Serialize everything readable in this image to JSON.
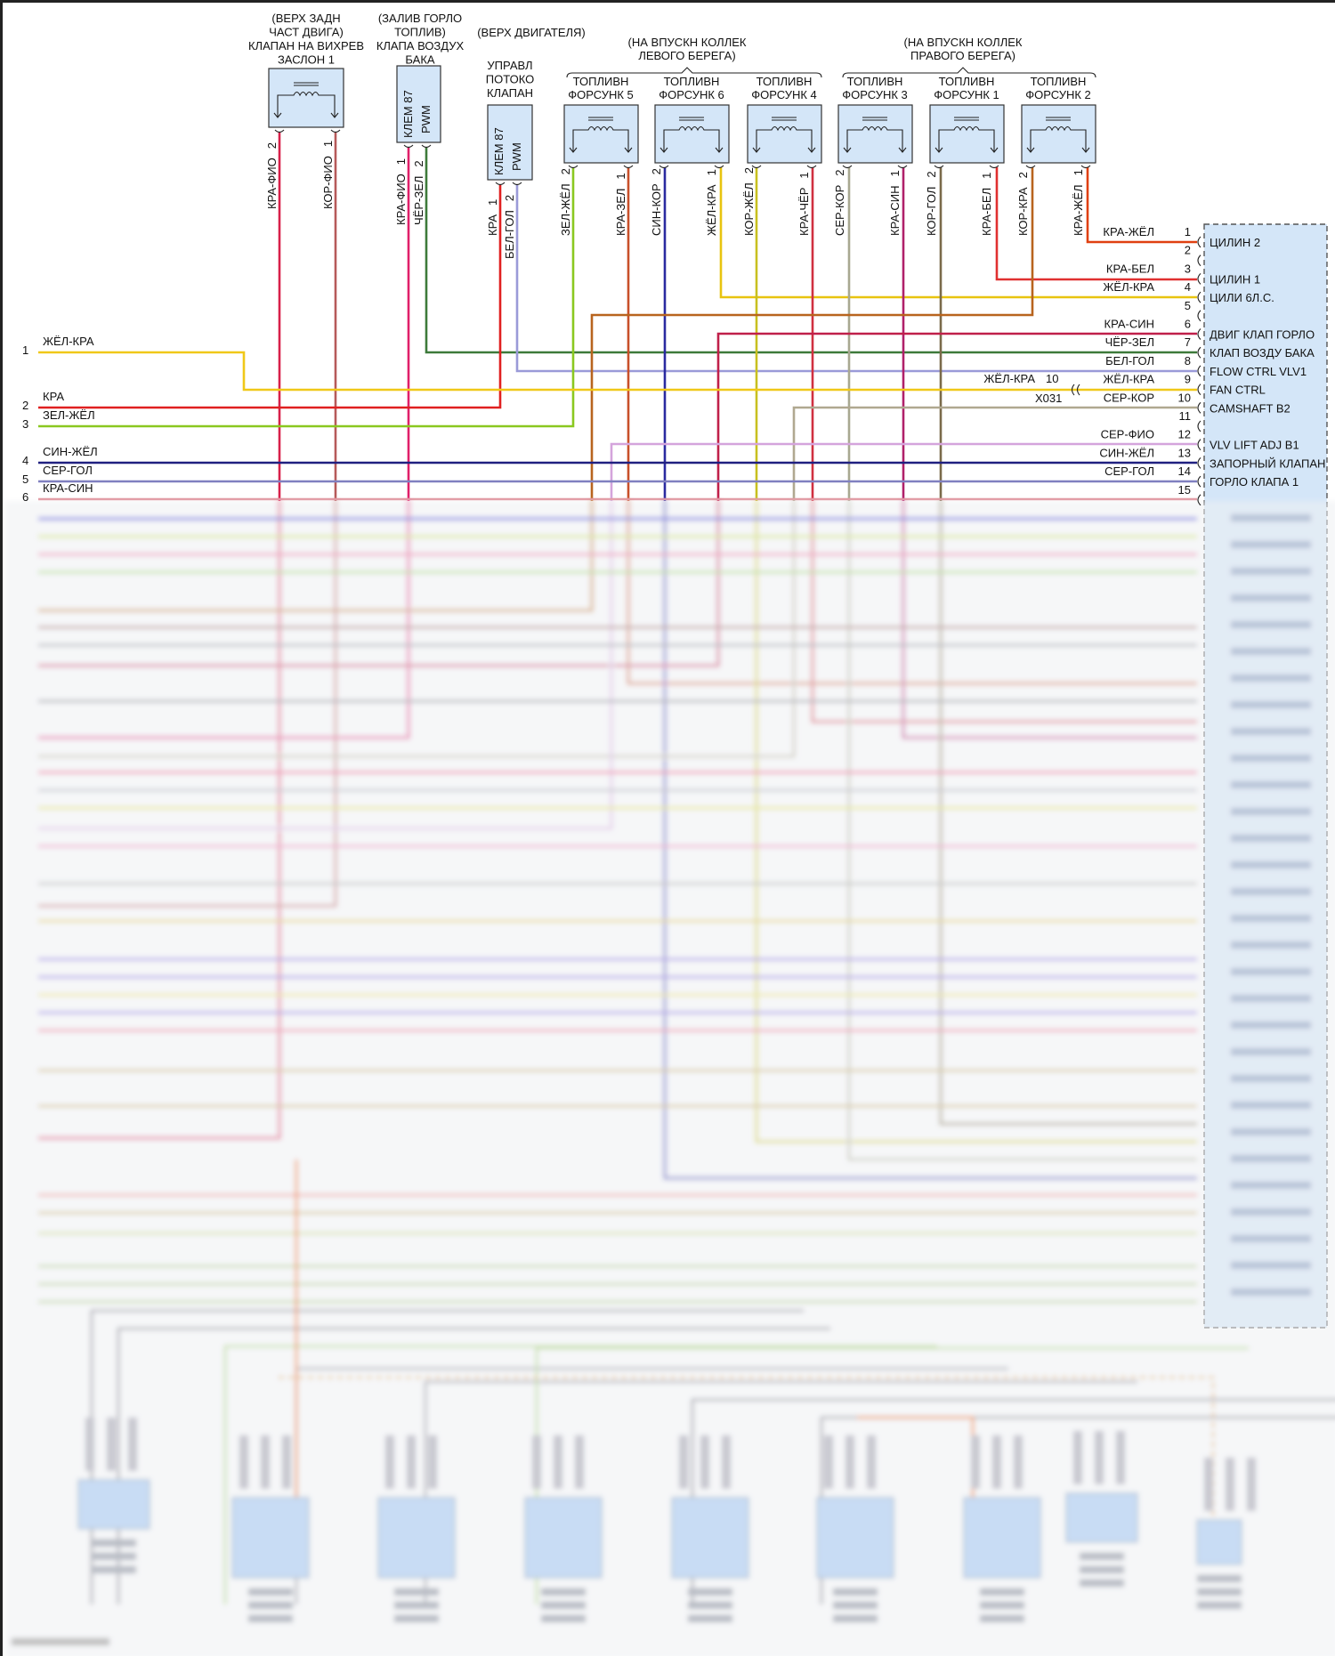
{
  "components": {
    "swirl_flap": {
      "title": [
        "(ВЕРХ ЗАДН",
        "ЧАСТ ДВИГА)",
        "КЛАПАН НА ВИХРЕВ",
        "ЗАСЛОН 1"
      ],
      "pins": [
        {
          "pin": "2",
          "wire": "КРА-ФИО"
        },
        {
          "pin": "1",
          "wire": "КОР-ФИО"
        }
      ]
    },
    "tank_valve": {
      "title": [
        "(ЗАЛИВ ГОРЛО",
        "ТОПЛИВ)",
        "КЛАПА ВОЗДУХ",
        "БАКА"
      ],
      "inner": [
        "КЛЕМ 87",
        "PWM"
      ],
      "pins": [
        {
          "pin": "1",
          "wire": "КРА-ФИО"
        },
        {
          "pin": "2",
          "wire": "ЧЁР-ЗЕЛ"
        }
      ]
    },
    "location_top": "(ВЕРХ ДВИГАТЕЛЯ)",
    "flow_valve": {
      "title": [
        "УПРАВЛ",
        "ПОТОКО",
        "КЛАПАН"
      ],
      "inner": [
        "КЛЕМ 87",
        "PWM"
      ],
      "pins": [
        {
          "pin": "1",
          "wire": "КРА"
        },
        {
          "pin": "2",
          "wire": "БЕЛ-ГОЛ"
        }
      ]
    },
    "bank_left": [
      "(НА ВПУСКН КОЛЛЕК",
      "ЛЕВОГО БЕРЕГА)"
    ],
    "bank_right": [
      "(НА ВПУСКН КОЛЛЕК",
      "ПРАВОГО БЕРЕГА)"
    ],
    "injectors": [
      {
        "title": [
          "ТОПЛИВН",
          "ФОРСУНК 5"
        ],
        "pins": [
          {
            "pin": "2",
            "wire": "ЗЕЛ-ЖЁЛ"
          },
          {
            "pin": "1",
            "wire": "КРА-ЗЕЛ"
          }
        ]
      },
      {
        "title": [
          "ТОПЛИВН",
          "ФОРСУНК 6"
        ],
        "pins": [
          {
            "pin": "2",
            "wire": "СИН-КОР"
          },
          {
            "pin": "1",
            "wire": "ЖЁЛ-КРА"
          }
        ]
      },
      {
        "title": [
          "ТОПЛИВН",
          "ФОРСУНК 4"
        ],
        "pins": [
          {
            "pin": "2",
            "wire": "КОР-ЖЁЛ"
          },
          {
            "pin": "1",
            "wire": "КРА-ЧЁР"
          }
        ]
      },
      {
        "title": [
          "ТОПЛИВН",
          "ФОРСУНК 3"
        ],
        "pins": [
          {
            "pin": "2",
            "wire": "СЕР-КОР"
          },
          {
            "pin": "1",
            "wire": "КРА-СИН"
          }
        ]
      },
      {
        "title": [
          "ТОПЛИВН",
          "ФОРСУНК 1"
        ],
        "pins": [
          {
            "pin": "2",
            "wire": "КОР-ГОЛ"
          },
          {
            "pin": "1",
            "wire": "КРА-БЕЛ"
          }
        ]
      },
      {
        "title": [
          "ТОПЛИВН",
          "ФОРСУНК 2"
        ],
        "pins": [
          {
            "pin": "2",
            "wire": "КОР-КРА"
          },
          {
            "pin": "1",
            "wire": "КРА-ЖЁЛ"
          }
        ]
      }
    ]
  },
  "left_connector": [
    {
      "pin": "1",
      "wire": "ЖЁЛ-КРА"
    },
    {
      "pin": "2",
      "wire": "КРА"
    },
    {
      "pin": "3",
      "wire": "ЗЕЛ-ЖЁЛ"
    },
    {
      "pin": "4",
      "wire": "СИН-ЖЁЛ"
    },
    {
      "pin": "5",
      "wire": "СЕР-ГОЛ"
    },
    {
      "pin": "6",
      "wire": "КРА-СИН"
    }
  ],
  "splice": {
    "wire": "ЖЁЛ-КРА",
    "pin": "10",
    "connector": "X031"
  },
  "ecu": {
    "pins": [
      {
        "pin": "1",
        "wire": "КРА-ЖЁЛ",
        "func": "ЦИЛИН 2"
      },
      {
        "pin": "2",
        "wire": "",
        "func": ""
      },
      {
        "pin": "3",
        "wire": "КРА-БЕЛ",
        "func": "ЦИЛИН 1"
      },
      {
        "pin": "4",
        "wire": "ЖЁЛ-КРА",
        "func": "ЦИЛИ 6Л.С."
      },
      {
        "pin": "5",
        "wire": "",
        "func": ""
      },
      {
        "pin": "6",
        "wire": "КРА-СИН",
        "func": "ДВИГ КЛАП ГОРЛО"
      },
      {
        "pin": "7",
        "wire": "ЧЁР-ЗЕЛ",
        "func": "КЛАП ВОЗДУ БАКА"
      },
      {
        "pin": "8",
        "wire": "БЕЛ-ГОЛ",
        "func": "FLOW CTRL VLV1"
      },
      {
        "pin": "9",
        "wire": "ЖЁЛ-КРА",
        "func": "FAN CTRL"
      },
      {
        "pin": "10",
        "wire": "СЕР-КОР",
        "func": "CAMSHAFT B2"
      },
      {
        "pin": "11",
        "wire": "",
        "func": ""
      },
      {
        "pin": "12",
        "wire": "СЕР-ФИО",
        "func": "VLV LIFT ADJ B1"
      },
      {
        "pin": "13",
        "wire": "СИН-ЖЁЛ",
        "func": "ЗАПОРНЫЙ КЛАПАН"
      },
      {
        "pin": "14",
        "wire": "СЕР-ГОЛ",
        "func": "ГОРЛО КЛАПА 1"
      },
      {
        "pin": "15",
        "wire": "",
        "func": ""
      }
    ]
  },
  "colors": {
    "component_fill": "#d4e6f8",
    "ecu_fill": "#d4e6f8"
  }
}
